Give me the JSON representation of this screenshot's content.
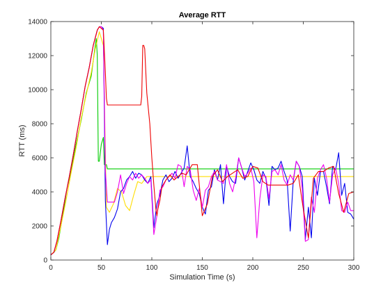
{
  "chart_data": {
    "type": "line",
    "title": "Average RTT",
    "xlabel": "Simulation Time (s)",
    "ylabel": "RTT (ms)",
    "xlim": [
      0,
      300
    ],
    "ylim": [
      0,
      14000
    ],
    "xticks": [
      0,
      50,
      100,
      150,
      200,
      250,
      300
    ],
    "yticks": [
      0,
      2000,
      4000,
      6000,
      8000,
      10000,
      12000,
      14000
    ],
    "grid": false,
    "legend": "none",
    "series": [
      {
        "color": "#00cc00",
        "x": [
          0,
          3,
          5,
          8,
          12,
          16,
          20,
          25,
          30,
          35,
          40,
          44,
          45,
          46,
          47,
          48,
          50,
          52,
          53,
          55,
          56,
          100,
          150,
          200,
          250,
          300
        ],
        "y": [
          300,
          450,
          600,
          1300,
          2700,
          4200,
          5200,
          6800,
          8200,
          9800,
          10800,
          12600,
          13000,
          12000,
          5800,
          5800,
          6800,
          7200,
          5600,
          5600,
          5350,
          5350,
          5350,
          5350,
          5350,
          5350
        ]
      },
      {
        "color": "#ffdd00",
        "x": [
          0,
          5,
          10,
          15,
          20,
          25,
          30,
          35,
          40,
          44,
          48,
          52,
          55,
          58,
          62,
          66,
          70,
          74,
          78,
          82,
          86,
          90,
          95,
          100,
          105,
          110,
          115,
          120,
          125,
          130,
          140,
          150,
          160,
          170,
          180,
          190,
          200,
          210,
          220,
          230,
          240,
          250,
          260,
          270,
          280,
          290,
          300
        ],
        "y": [
          300,
          600,
          2000,
          3500,
          5100,
          6600,
          8300,
          9700,
          11000,
          12400,
          13400,
          12600,
          3100,
          2800,
          3300,
          4200,
          4000,
          3200,
          2900,
          3800,
          4600,
          4500,
          4900,
          4900,
          4900,
          4900,
          4900,
          4900,
          4900,
          4900,
          4900,
          4900,
          4900,
          4900,
          4900,
          4900,
          4900,
          4900,
          4900,
          4900,
          4900,
          4900,
          4900,
          4900,
          4900,
          4900,
          4900
        ]
      },
      {
        "color": "#0000ee",
        "x": [
          0,
          3,
          6,
          10,
          14,
          18,
          22,
          26,
          30,
          34,
          38,
          42,
          46,
          48,
          50,
          52,
          54,
          56,
          58,
          60,
          63,
          66,
          69,
          72,
          75,
          78,
          81,
          84,
          87,
          90,
          93,
          96,
          99,
          102,
          105,
          108,
          111,
          114,
          117,
          120,
          123,
          126,
          129,
          132,
          135,
          138,
          141,
          144,
          147,
          150,
          153,
          156,
          159,
          162,
          165,
          168,
          171,
          174,
          177,
          180,
          183,
          186,
          189,
          192,
          195,
          198,
          201,
          204,
          207,
          210,
          213,
          216,
          219,
          222,
          225,
          228,
          231,
          234,
          237,
          240,
          243,
          246,
          249,
          252,
          255,
          258,
          261,
          264,
          267,
          270,
          273,
          276,
          279,
          282,
          285,
          288,
          291,
          294,
          297,
          300
        ],
        "y": [
          300,
          450,
          1100,
          2300,
          3600,
          4800,
          6100,
          7500,
          8800,
          10200,
          11300,
          12600,
          13500,
          13700,
          13700,
          13600,
          3500,
          900,
          1800,
          2200,
          2500,
          3000,
          4000,
          4200,
          4700,
          4900,
          5200,
          4800,
          5100,
          5000,
          4700,
          4500,
          4900,
          1900,
          3300,
          3800,
          4700,
          5000,
          4600,
          4800,
          5200,
          4800,
          5100,
          5400,
          6700,
          4900,
          4600,
          4200,
          3900,
          3100,
          2700,
          4100,
          4300,
          5300,
          4700,
          5600,
          3300,
          5500,
          4900,
          4600,
          4500,
          6000,
          5400,
          4700,
          5200,
          5700,
          5300,
          4700,
          4500,
          5200,
          4800,
          3200,
          5500,
          5300,
          5400,
          5800,
          5200,
          4700,
          1700,
          4600,
          5800,
          5500,
          4900,
          1200,
          3100,
          1300,
          4800,
          3800,
          5200,
          5200,
          4300,
          3300,
          5500,
          5300,
          6300,
          3800,
          4500,
          2800,
          2700,
          2400
        ]
      },
      {
        "color": "#ee00ee",
        "x": [
          0,
          3,
          6,
          10,
          14,
          18,
          22,
          26,
          30,
          34,
          38,
          42,
          46,
          48,
          50,
          52,
          54,
          56,
          58,
          60,
          63,
          66,
          69,
          72,
          75,
          78,
          81,
          84,
          87,
          90,
          93,
          96,
          99,
          102,
          105,
          108,
          111,
          114,
          117,
          120,
          123,
          126,
          129,
          132,
          135,
          138,
          141,
          144,
          147,
          150,
          153,
          156,
          159,
          162,
          165,
          168,
          171,
          174,
          177,
          180,
          183,
          186,
          189,
          192,
          195,
          198,
          201,
          204,
          207,
          210,
          213,
          216,
          219,
          222,
          225,
          228,
          231,
          234,
          237,
          240,
          243,
          246,
          249,
          252,
          255,
          258,
          261,
          264,
          267,
          270,
          273,
          276,
          279,
          282,
          285,
          288,
          291,
          294,
          297,
          300
        ],
        "y": [
          300,
          450,
          1100,
          2300,
          3600,
          4800,
          6100,
          7500,
          8800,
          10200,
          11300,
          12600,
          13500,
          13700,
          13700,
          13500,
          5200,
          3400,
          3400,
          3400,
          3400,
          4000,
          5000,
          3900,
          4500,
          4900,
          4700,
          5100,
          4800,
          5000,
          4800,
          4500,
          4700,
          1500,
          2600,
          4100,
          4300,
          4700,
          4900,
          5100,
          4800,
          5600,
          5500,
          4300,
          5500,
          5300,
          4100,
          3500,
          4200,
          3100,
          4100,
          4300,
          4900,
          5200,
          4700,
          4600,
          4500,
          5600,
          4500,
          4000,
          4800,
          6000,
          5400,
          4900,
          5100,
          5400,
          4600,
          1300,
          3600,
          5000,
          4900,
          3600,
          5200,
          5300,
          5000,
          5600,
          4700,
          4400,
          5000,
          4700,
          5800,
          5500,
          4200,
          1100,
          1200,
          3700,
          2800,
          4800,
          5300,
          5600,
          4800,
          3400,
          5000,
          5400,
          4500,
          2900,
          2800,
          3400,
          2900,
          2900
        ]
      },
      {
        "color": "#ee0000",
        "x": [
          0,
          3,
          6,
          10,
          14,
          18,
          22,
          26,
          30,
          34,
          38,
          42,
          46,
          48,
          50,
          52,
          54,
          55,
          56,
          60,
          70,
          80,
          89,
          90,
          91,
          92,
          93,
          95,
          98,
          100,
          102,
          104,
          105,
          106,
          108,
          110,
          114,
          118,
          122,
          126,
          130,
          134,
          138,
          140,
          145,
          150,
          155,
          160,
          165,
          170,
          175,
          180,
          185,
          190,
          195,
          200,
          205,
          210,
          215,
          220,
          225,
          230,
          235,
          240,
          245,
          250,
          255,
          260,
          265,
          270,
          275,
          280,
          285,
          290,
          295,
          300
        ],
        "y": [
          300,
          450,
          1100,
          2300,
          3600,
          4800,
          6100,
          7500,
          8800,
          10200,
          11300,
          12600,
          13500,
          13700,
          13600,
          13500,
          11000,
          9500,
          9100,
          9100,
          9100,
          9100,
          9100,
          9600,
          12600,
          12600,
          12400,
          9800,
          8000,
          6000,
          4400,
          3000,
          2600,
          3000,
          3500,
          4300,
          4700,
          5000,
          4700,
          4900,
          5100,
          5000,
          5400,
          5600,
          5600,
          2600,
          3300,
          4900,
          5300,
          4600,
          4900,
          5100,
          5300,
          4800,
          4900,
          5500,
          5400,
          4600,
          4400,
          4400,
          4400,
          4400,
          4400,
          4500,
          5000,
          3000,
          1300,
          4800,
          5200,
          5200,
          5400,
          5500,
          3900,
          2800,
          3900,
          4000
        ]
      }
    ]
  }
}
